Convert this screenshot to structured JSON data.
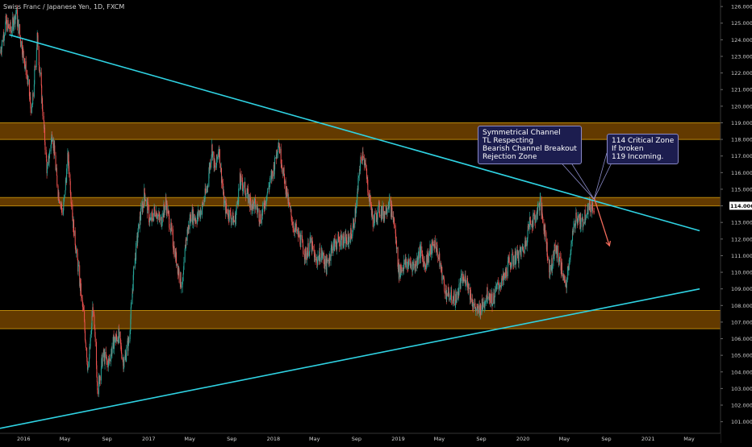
{
  "chart_data": {
    "type": "candlestick",
    "title": "Swiss Franc / Japanese Yen, 1D, FXCM",
    "y_ticks": [
      "101.000",
      "102.000",
      "103.000",
      "104.000",
      "105.000",
      "106.000",
      "107.000",
      "108.000",
      "109.000",
      "110.000",
      "111.000",
      "112.000",
      "113.000",
      "114.000",
      "115.000",
      "116.000",
      "117.000",
      "118.000",
      "119.000",
      "120.000",
      "121.000",
      "122.000",
      "123.000",
      "124.000",
      "125.000",
      "126.000"
    ],
    "ylim": [
      100.4,
      126.2
    ],
    "x_ticks": [
      "2016",
      "May",
      "Sep",
      "2017",
      "May",
      "Sep",
      "2018",
      "May",
      "Sep",
      "2019",
      "May",
      "Sep",
      "2020",
      "May",
      "Sep",
      "2021",
      "May"
    ],
    "xlim": [
      "2015-10-24",
      "2021-08-01"
    ],
    "current_price": "114.006",
    "zones": [
      {
        "name": "upper-zone",
        "from": 118.0,
        "to": 119.0
      },
      {
        "name": "middle-zone",
        "from": 114.0,
        "to": 114.5
      },
      {
        "name": "lower-zone",
        "from": 106.6,
        "to": 107.7
      }
    ],
    "trendlines": [
      {
        "name": "upper-trendline",
        "from": [
          "2015-11-20",
          124.3
        ],
        "to": [
          "2021-06-01",
          112.5
        ]
      },
      {
        "name": "lower-trendline",
        "from": [
          "2015-10-24",
          100.6
        ],
        "to": [
          "2021-06-01",
          109.0
        ]
      }
    ],
    "projection": {
      "from": [
        "2020-07-27",
        114.5
      ],
      "to": [
        "2020-09-10",
        111.6
      ]
    },
    "annotations": [
      {
        "name": "channel-note",
        "lines": [
          "Symmetrical Channel",
          "TL Respecting",
          "Bearish Channel Breakout",
          "Rejection Zone"
        ]
      },
      {
        "name": "critical-zone-note",
        "lines": [
          "114 Critical Zone",
          "If broken",
          "119 Incoming."
        ]
      }
    ],
    "price_path": [
      [
        "2015-10-24",
        123.2
      ],
      [
        "2015-11-10",
        125.0
      ],
      [
        "2015-11-25",
        124.6
      ],
      [
        "2015-12-10",
        125.6
      ],
      [
        "2015-12-25",
        123.8
      ],
      [
        "2016-01-10",
        122.0
      ],
      [
        "2016-01-25",
        119.5
      ],
      [
        "2016-02-10",
        124.2
      ],
      [
        "2016-02-25",
        120.0
      ],
      [
        "2016-03-10",
        116.0
      ],
      [
        "2016-03-25",
        118.5
      ],
      [
        "2016-04-10",
        115.0
      ],
      [
        "2016-04-25",
        113.5
      ],
      [
        "2016-05-10",
        117.0
      ],
      [
        "2016-05-25",
        113.0
      ],
      [
        "2016-06-10",
        110.0
      ],
      [
        "2016-06-24",
        107.5
      ],
      [
        "2016-07-08",
        104.0
      ],
      [
        "2016-07-22",
        108.0
      ],
      [
        "2016-08-05",
        103.0
      ],
      [
        "2016-08-20",
        105.0
      ],
      [
        "2016-09-05",
        104.5
      ],
      [
        "2016-09-20",
        105.8
      ],
      [
        "2016-10-05",
        106.2
      ],
      [
        "2016-10-20",
        104.5
      ],
      [
        "2016-11-05",
        106.0
      ],
      [
        "2016-11-20",
        110.5
      ],
      [
        "2016-12-05",
        113.0
      ],
      [
        "2016-12-20",
        114.8
      ],
      [
        "2017-01-05",
        113.0
      ],
      [
        "2017-01-20",
        113.8
      ],
      [
        "2017-02-05",
        113.0
      ],
      [
        "2017-02-20",
        114.2
      ],
      [
        "2017-03-05",
        112.8
      ],
      [
        "2017-03-20",
        111.0
      ],
      [
        "2017-04-10",
        109.0
      ],
      [
        "2017-04-20",
        112.0
      ],
      [
        "2017-05-05",
        113.5
      ],
      [
        "2017-05-20",
        113.2
      ],
      [
        "2017-06-05",
        113.8
      ],
      [
        "2017-06-20",
        115.0
      ],
      [
        "2017-07-05",
        117.5
      ],
      [
        "2017-07-15",
        116.0
      ],
      [
        "2017-07-25",
        117.6
      ],
      [
        "2017-08-10",
        114.0
      ],
      [
        "2017-08-25",
        113.5
      ],
      [
        "2017-09-10",
        113.0
      ],
      [
        "2017-09-25",
        115.5
      ],
      [
        "2017-10-10",
        115.0
      ],
      [
        "2017-10-25",
        114.2
      ],
      [
        "2017-11-10",
        114.0
      ],
      [
        "2017-11-25",
        113.2
      ],
      [
        "2017-12-10",
        114.5
      ],
      [
        "2017-12-25",
        115.6
      ],
      [
        "2018-01-05",
        116.5
      ],
      [
        "2018-01-15",
        118.0
      ],
      [
        "2018-01-30",
        116.0
      ],
      [
        "2018-02-15",
        114.0
      ],
      [
        "2018-03-01",
        112.8
      ],
      [
        "2018-03-20",
        112.0
      ],
      [
        "2018-04-05",
        111.0
      ],
      [
        "2018-04-20",
        111.8
      ],
      [
        "2018-05-05",
        110.6
      ],
      [
        "2018-05-20",
        111.2
      ],
      [
        "2018-06-05",
        110.3
      ],
      [
        "2018-06-20",
        111.5
      ],
      [
        "2018-07-05",
        111.8
      ],
      [
        "2018-07-20",
        112.0
      ],
      [
        "2018-08-05",
        111.8
      ],
      [
        "2018-08-20",
        112.5
      ],
      [
        "2018-09-01",
        114.0
      ],
      [
        "2018-09-10",
        116.3
      ],
      [
        "2018-09-20",
        117.3
      ],
      [
        "2018-10-05",
        115.0
      ],
      [
        "2018-10-20",
        113.0
      ],
      [
        "2018-11-05",
        113.8
      ],
      [
        "2018-11-20",
        113.5
      ],
      [
        "2018-12-05",
        114.3
      ],
      [
        "2018-12-20",
        113.0
      ],
      [
        "2019-01-03",
        110.0
      ],
      [
        "2019-01-20",
        110.5
      ],
      [
        "2019-02-05",
        110.5
      ],
      [
        "2019-02-20",
        110.4
      ],
      [
        "2019-03-05",
        111.3
      ],
      [
        "2019-03-20",
        110.5
      ],
      [
        "2019-04-05",
        111.3
      ],
      [
        "2019-04-20",
        111.8
      ],
      [
        "2019-05-05",
        110.3
      ],
      [
        "2019-05-20",
        108.8
      ],
      [
        "2019-06-05",
        108.5
      ],
      [
        "2019-06-20",
        108.4
      ],
      [
        "2019-07-05",
        109.5
      ],
      [
        "2019-07-20",
        109.6
      ],
      [
        "2019-08-05",
        108.3
      ],
      [
        "2019-08-20",
        107.6
      ],
      [
        "2019-09-05",
        108.0
      ],
      [
        "2019-09-20",
        108.8
      ],
      [
        "2019-10-05",
        108.3
      ],
      [
        "2019-10-20",
        109.2
      ],
      [
        "2019-11-05",
        109.5
      ],
      [
        "2019-11-20",
        110.5
      ],
      [
        "2019-12-05",
        110.8
      ],
      [
        "2019-12-20",
        111.0
      ],
      [
        "2020-01-05",
        111.5
      ],
      [
        "2020-01-20",
        113.0
      ],
      [
        "2020-02-05",
        113.2
      ],
      [
        "2020-02-20",
        114.2
      ],
      [
        "2020-03-05",
        112.5
      ],
      [
        "2020-03-20",
        110.0
      ],
      [
        "2020-04-05",
        111.5
      ],
      [
        "2020-04-20",
        110.5
      ],
      [
        "2020-05-05",
        109.0
      ],
      [
        "2020-05-20",
        111.5
      ],
      [
        "2020-06-05",
        113.5
      ],
      [
        "2020-06-20",
        112.8
      ],
      [
        "2020-07-05",
        113.8
      ],
      [
        "2020-07-20",
        114.0
      ],
      [
        "2020-07-27",
        114.0
      ]
    ]
  }
}
